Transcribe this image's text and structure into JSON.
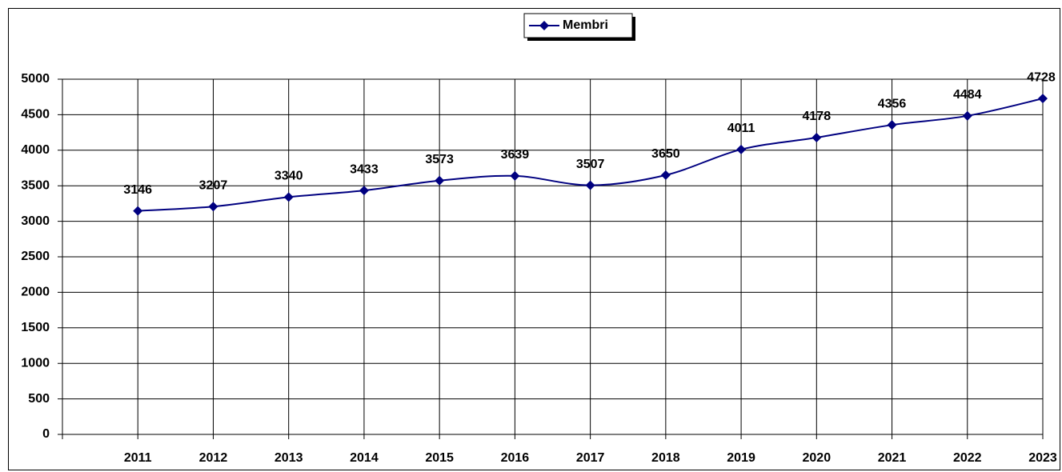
{
  "chart_data": {
    "type": "line",
    "categories": [
      "2011",
      "2012",
      "2013",
      "2014",
      "2015",
      "2016",
      "2017",
      "2018",
      "2019",
      "2020",
      "2021",
      "2022",
      "2023"
    ],
    "series": [
      {
        "name": "Membri",
        "color": "#000080",
        "values": [
          3146,
          3207,
          3340,
          3433,
          3573,
          3639,
          3507,
          3650,
          4011,
          4178,
          4356,
          4484,
          4728
        ]
      }
    ],
    "ylim": [
      0,
      5000
    ],
    "yticks": [
      0,
      500,
      1000,
      1500,
      2000,
      2500,
      3000,
      3500,
      4000,
      4500,
      5000
    ],
    "grid": true,
    "legend": "top",
    "smooth": true
  }
}
